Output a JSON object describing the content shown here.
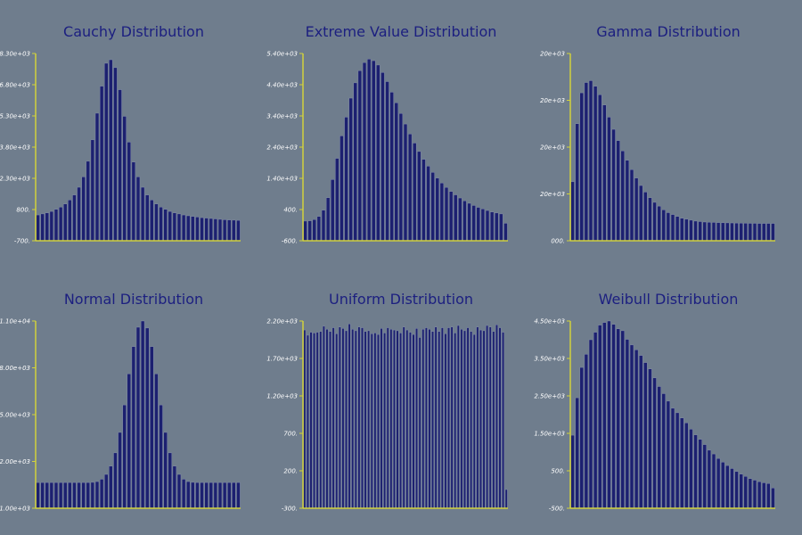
{
  "colors": {
    "background": "#6f7d8d",
    "bar": "#1c2070",
    "bar_edge": "#8a94b0",
    "axis": "#d2d23c",
    "title": "#1c1f80",
    "tick_text": "#ffffff"
  },
  "chart_data": [
    {
      "type": "bar",
      "title": "Cauchy Distribution",
      "ylim": [
        -700,
        8300
      ],
      "yticks": [
        "-700.",
        "800.",
        "2.30e+03",
        "3.80e+03",
        "5.30e+03",
        "6.80e+03",
        "8.30e+03"
      ],
      "values": [
        540,
        590,
        640,
        710,
        810,
        920,
        1070,
        1260,
        1500,
        1870,
        2370,
        3120,
        4150,
        5430,
        6730,
        7830,
        8000,
        7620,
        6560,
        5280,
        4040,
        3080,
        2370,
        1870,
        1500,
        1260,
        1070,
        920,
        810,
        710,
        640,
        590,
        540,
        500,
        470,
        440,
        410,
        390,
        370,
        350,
        330,
        310,
        300,
        290,
        280
      ]
    },
    {
      "type": "bar",
      "title": "Extreme Value Distribution",
      "ylim": [
        -600,
        5400
      ],
      "yticks": [
        "-600.",
        "400.",
        "1.40e+03",
        "2.40e+03",
        "3.40e+03",
        "4.40e+03",
        "5.40e+03"
      ],
      "values": [
        30,
        40,
        80,
        180,
        380,
        780,
        1360,
        2040,
        2760,
        3360,
        3970,
        4460,
        4850,
        5110,
        5220,
        5170,
        5030,
        4790,
        4500,
        4160,
        3820,
        3480,
        3140,
        2820,
        2530,
        2260,
        2010,
        1790,
        1590,
        1410,
        1250,
        1110,
        980,
        870,
        770,
        680,
        600,
        530,
        470,
        420,
        370,
        320,
        290,
        260,
        -40
      ]
    },
    {
      "type": "bar",
      "title": "Gamma Distribution",
      "ylim": [
        0,
        20000
      ],
      "yticks": [
        "000.",
        "20e+03",
        "20e+03",
        "20e+03",
        "20e+03"
      ],
      "values": [
        6300,
        12500,
        15800,
        16900,
        17100,
        16500,
        15600,
        14500,
        13200,
        11900,
        10700,
        9600,
        8600,
        7600,
        6700,
        5900,
        5200,
        4600,
        4100,
        3700,
        3300,
        3000,
        2800,
        2600,
        2400,
        2300,
        2200,
        2100,
        2050,
        2000,
        1980,
        1960,
        1940,
        1920,
        1910,
        1900,
        1890,
        1880,
        1870,
        1860,
        1860,
        1850,
        1850,
        1850,
        1850
      ]
    },
    {
      "type": "bar",
      "title": "Normal Distribution",
      "ylim": [
        -1000,
        11000
      ],
      "yticks": [
        "-1.00e+03",
        "2.00e+03",
        "5.00e+03",
        "8.00e+03",
        "1.10e+04"
      ],
      "values": [
        650,
        650,
        650,
        650,
        650,
        650,
        650,
        650,
        650,
        650,
        650,
        650,
        660,
        710,
        860,
        1170,
        1700,
        2550,
        3860,
        5620,
        7610,
        9360,
        10600,
        11000,
        10550,
        9360,
        7610,
        5620,
        3860,
        2550,
        1700,
        1170,
        860,
        710,
        660,
        650,
        650,
        650,
        650,
        650,
        650,
        650,
        650,
        650,
        650
      ]
    },
    {
      "type": "bar",
      "title": "Uniform Distribution",
      "ylim": [
        -300,
        2200
      ],
      "yticks": [
        "-300.",
        "200.",
        "700.",
        "1.20e+03",
        "1.70e+03",
        "2.20e+03"
      ],
      "values": [
        2080,
        2010,
        2050,
        2040,
        2050,
        2060,
        2130,
        2090,
        2060,
        2110,
        2030,
        2120,
        2100,
        2070,
        2160,
        2090,
        2070,
        2120,
        2110,
        2060,
        2070,
        2030,
        2040,
        2020,
        2100,
        2040,
        2110,
        2090,
        2080,
        2070,
        2040,
        2120,
        2080,
        2050,
        2020,
        2100,
        1980,
        2090,
        2110,
        2090,
        2060,
        2120,
        2060,
        2110,
        2030,
        2110,
        2120,
        2040,
        2140,
        2090,
        2070,
        2110,
        2060,
        2020,
        2120,
        2080,
        2070,
        2140,
        2120,
        2060,
        2150,
        2110,
        2050,
        -50
      ]
    },
    {
      "type": "bar",
      "title": "Weibull Distribution",
      "ylim": [
        -500,
        4500
      ],
      "yticks": [
        "-500.",
        "500.",
        "1.50e+03",
        "2.50e+03",
        "3.50e+03",
        "4.50e+03"
      ],
      "values": [
        1450,
        2450,
        3260,
        3610,
        4000,
        4200,
        4390,
        4460,
        4500,
        4410,
        4290,
        4240,
        4010,
        3860,
        3730,
        3580,
        3390,
        3220,
        2980,
        2750,
        2560,
        2360,
        2170,
        2050,
        1910,
        1780,
        1610,
        1460,
        1340,
        1200,
        1050,
        950,
        830,
        730,
        640,
        560,
        480,
        410,
        350,
        290,
        250,
        210,
        180,
        160,
        40
      ]
    }
  ]
}
